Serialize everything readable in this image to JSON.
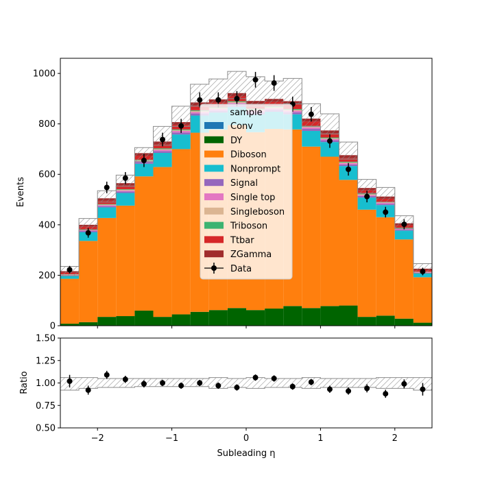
{
  "chart_data": {
    "type": "stacked-histogram-with-ratio",
    "main": {
      "ylabel": "Events",
      "ylim": [
        0,
        1060
      ],
      "yticks": [
        0,
        200,
        400,
        600,
        800,
        1000
      ],
      "xlim": [
        -2.5,
        2.5
      ],
      "bin_edges": [
        -2.5,
        -2.25,
        -2.0,
        -1.75,
        -1.5,
        -1.25,
        -1.0,
        -0.75,
        -0.5,
        -0.25,
        0.0,
        0.25,
        0.5,
        0.75,
        1.0,
        1.25,
        1.5,
        1.75,
        2.0,
        2.25,
        2.5
      ],
      "series": [
        {
          "name": "Conv",
          "color": "#1f77b4",
          "values": [
            0,
            0,
            0,
            0,
            0,
            0,
            0,
            0,
            0,
            0,
            0,
            0,
            0,
            0,
            0,
            0,
            0,
            0,
            0,
            0
          ]
        },
        {
          "name": "DY",
          "color": "#006400",
          "values": [
            8,
            14,
            35,
            38,
            60,
            35,
            45,
            55,
            62,
            70,
            62,
            68,
            78,
            70,
            78,
            80,
            35,
            40,
            28,
            12
          ]
        },
        {
          "name": "Diboson",
          "color": "#ff7f0e",
          "values": [
            178,
            322,
            392,
            438,
            532,
            594,
            655,
            710,
            715,
            725,
            705,
            712,
            700,
            640,
            592,
            498,
            425,
            390,
            314,
            180
          ]
        },
        {
          "name": "Nonprompt",
          "color": "#17becf",
          "values": [
            12,
            35,
            42,
            50,
            50,
            56,
            58,
            68,
            68,
            72,
            70,
            68,
            60,
            62,
            58,
            55,
            48,
            48,
            35,
            16
          ]
        },
        {
          "name": "Signal",
          "color": "#9467bd",
          "values": [
            2,
            4,
            5,
            6,
            6,
            7,
            8,
            8,
            8,
            9,
            9,
            8,
            8,
            8,
            7,
            6,
            6,
            5,
            4,
            2
          ]
        },
        {
          "name": "Single top",
          "color": "#e377c2",
          "values": [
            2,
            3,
            4,
            4,
            5,
            5,
            6,
            6,
            6,
            7,
            7,
            6,
            6,
            6,
            5,
            5,
            4,
            4,
            3,
            2
          ]
        },
        {
          "name": "Singleboson",
          "color": "#dbb592",
          "values": [
            1,
            2,
            2,
            3,
            3,
            3,
            3,
            4,
            4,
            4,
            4,
            4,
            4,
            3,
            3,
            3,
            3,
            2,
            2,
            1
          ]
        },
        {
          "name": "Triboson",
          "color": "#3cb371",
          "values": [
            1,
            2,
            2,
            2,
            2,
            3,
            3,
            3,
            3,
            3,
            3,
            3,
            3,
            3,
            3,
            3,
            2,
            2,
            2,
            1
          ]
        },
        {
          "name": "Ttbar",
          "color": "#d62728",
          "values": [
            6,
            10,
            13,
            14,
            16,
            16,
            18,
            18,
            18,
            19,
            19,
            18,
            18,
            17,
            16,
            14,
            13,
            12,
            10,
            6
          ]
        },
        {
          "name": "ZGamma",
          "color": "#a02c2c",
          "values": [
            6,
            8,
            10,
            10,
            10,
            11,
            11,
            13,
            13,
            13,
            12,
            12,
            13,
            12,
            12,
            12,
            10,
            9,
            8,
            6
          ]
        }
      ],
      "uncertainty_band": {
        "up": [
          235,
          425,
          535,
          597,
          706,
          790,
          870,
          957,
          978,
          1008,
          987,
          970,
          980,
          880,
          840,
          728,
          580,
          548,
          436,
          246
        ],
        "down": [
          198,
          380,
          490,
          552,
          650,
          715,
          790,
          870,
          870,
          900,
          870,
          870,
          880,
          790,
          760,
          660,
          525,
          490,
          385,
          208
        ]
      },
      "data": {
        "name": "Data",
        "values": [
          222,
          368,
          548,
          585,
          655,
          738,
          792,
          895,
          895,
          900,
          975,
          962,
          878,
          838,
          732,
          620,
          512,
          450,
          402,
          215
        ],
        "errors": [
          15,
          19,
          23,
          24,
          26,
          27,
          28,
          30,
          30,
          30,
          31,
          31,
          30,
          29,
          27,
          25,
          23,
          21,
          20,
          15
        ]
      },
      "legend": {
        "title": "sample",
        "position": "center"
      }
    },
    "ratio": {
      "ylabel": "Ratio",
      "xlabel": "Subleading η",
      "ylim": [
        0.5,
        1.5
      ],
      "yticks": [
        "0.50",
        "0.75",
        "1.00",
        "1.25",
        "1.50"
      ],
      "xticks": [
        "−2",
        "−1",
        "0",
        "1",
        "2"
      ],
      "values": [
        1.02,
        0.92,
        1.09,
        1.04,
        0.99,
        1.0,
        0.97,
        1.0,
        0.97,
        0.95,
        1.06,
        1.05,
        0.96,
        1.01,
        0.93,
        0.91,
        0.94,
        0.88,
        0.99,
        0.93
      ],
      "errors": [
        0.07,
        0.05,
        0.045,
        0.04,
        0.04,
        0.035,
        0.035,
        0.035,
        0.035,
        0.035,
        0.035,
        0.035,
        0.035,
        0.035,
        0.04,
        0.04,
        0.045,
        0.045,
        0.05,
        0.07
      ],
      "band_up": [
        1.06,
        1.06,
        1.05,
        1.05,
        1.05,
        1.05,
        1.05,
        1.05,
        1.06,
        1.05,
        1.06,
        1.05,
        1.05,
        1.06,
        1.05,
        1.05,
        1.05,
        1.06,
        1.06,
        1.06
      ],
      "band_down": [
        0.92,
        0.94,
        0.95,
        0.95,
        0.96,
        0.96,
        0.96,
        0.96,
        0.94,
        0.95,
        0.94,
        0.95,
        0.95,
        0.94,
        0.95,
        0.95,
        0.95,
        0.94,
        0.94,
        0.92
      ]
    }
  }
}
